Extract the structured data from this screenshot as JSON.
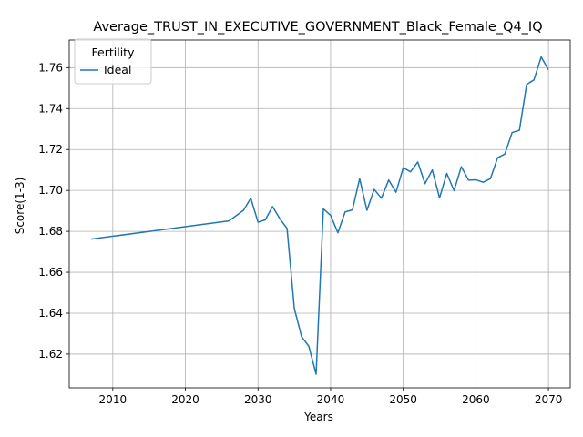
{
  "chart_data": {
    "type": "line",
    "title": "Average_TRUST_IN_EXECUTIVE_GOVERNMENT_Black_Female_Q4_IQ",
    "xlabel": "Years",
    "ylabel": "Score(1-3)",
    "xlim": [
      2004,
      2073
    ],
    "ylim": [
      1.6035,
      1.7735
    ],
    "xticks": [
      2010,
      2020,
      2030,
      2040,
      2050,
      2060,
      2070
    ],
    "yticks": [
      1.62,
      1.64,
      1.66,
      1.68,
      1.7,
      1.72,
      1.74,
      1.76
    ],
    "ytick_labels": [
      "1.62",
      "1.64",
      "1.66",
      "1.68",
      "1.70",
      "1.72",
      "1.74",
      "1.76"
    ],
    "grid": true,
    "legend": {
      "title": "Fertility",
      "placement": "upper-left"
    },
    "series": [
      {
        "name": "Ideal",
        "color": "#1f77b4",
        "x": [
          2007,
          2026,
          2028,
          2029,
          2030,
          2031,
          2032,
          2033,
          2034,
          2035,
          2036,
          2037,
          2038,
          2039,
          2040,
          2041,
          2042,
          2043,
          2044,
          2045,
          2046,
          2047,
          2048,
          2049,
          2050,
          2051,
          2052,
          2053,
          2054,
          2055,
          2056,
          2057,
          2058,
          2059,
          2060,
          2061,
          2062,
          2063,
          2064,
          2065,
          2066,
          2067,
          2068,
          2069,
          2070
        ],
        "y": [
          1.6762,
          1.6851,
          1.6903,
          1.6962,
          1.6845,
          1.6856,
          1.6921,
          1.6862,
          1.6814,
          1.6423,
          1.6285,
          1.6238,
          1.6102,
          1.691,
          1.6878,
          1.6793,
          1.6895,
          1.6905,
          1.7057,
          1.6903,
          1.7005,
          1.6962,
          1.7051,
          1.6991,
          1.7111,
          1.7091,
          1.7139,
          1.7033,
          1.71,
          1.6963,
          1.7083,
          1.6999,
          1.7116,
          1.705,
          1.7052,
          1.704,
          1.7057,
          1.716,
          1.7178,
          1.7283,
          1.7294,
          1.7518,
          1.754,
          1.7652,
          1.759
        ]
      }
    ]
  }
}
